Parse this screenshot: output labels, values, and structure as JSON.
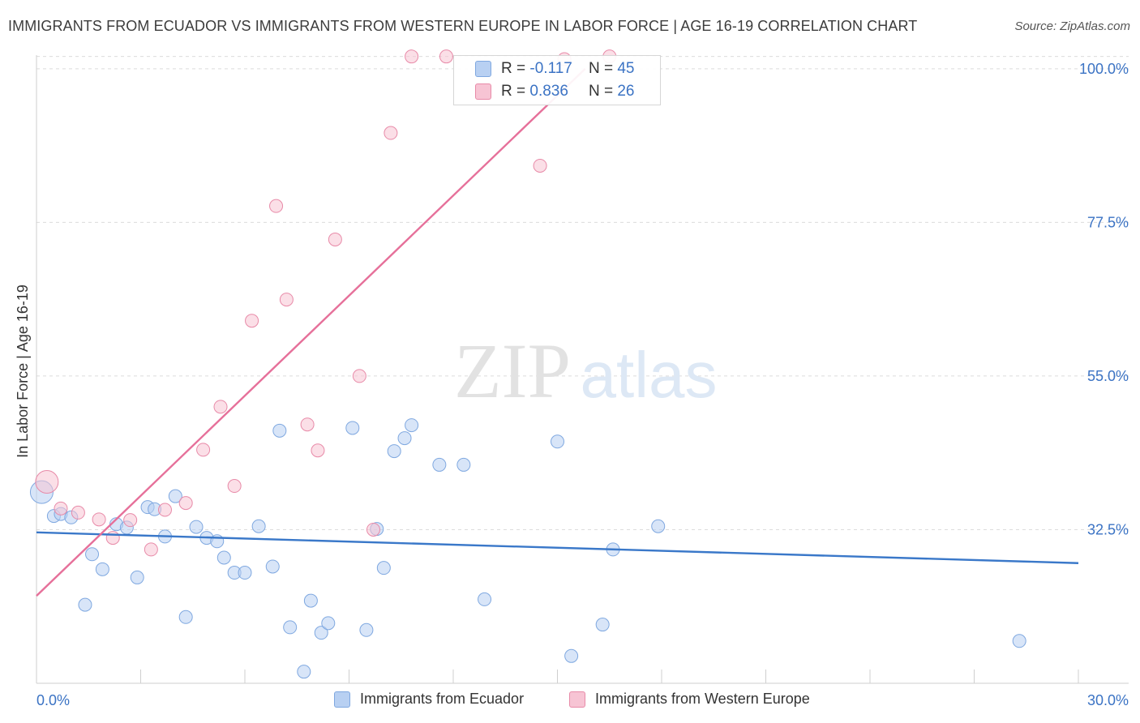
{
  "header": {
    "title": "IMMIGRANTS FROM ECUADOR VS IMMIGRANTS FROM WESTERN EUROPE IN LABOR FORCE | AGE 16-19 CORRELATION CHART",
    "source": "Source: ZipAtlas.com"
  },
  "watermark": {
    "zip": "ZIP",
    "atlas": "atlas"
  },
  "legend": {
    "r_label": "R =",
    "n_label": "N =",
    "series": [
      {
        "name": "Immigrants from Ecuador",
        "r": "-0.117",
        "n": "45",
        "color": "#7fa8e0",
        "fill": "#b8d0f2"
      },
      {
        "name": "Immigrants from Western Europe",
        "r": "0.836",
        "n": "26",
        "color": "#e88aa8",
        "fill": "#f7c4d4"
      }
    ]
  },
  "chart_data": {
    "type": "scatter",
    "title": "IMMIGRANTS FROM ECUADOR VS IMMIGRANTS FROM WESTERN EUROPE IN LABOR FORCE | AGE 16-19 CORRELATION CHART",
    "xlabel": "",
    "ylabel": "In Labor Force | Age 16-19",
    "xlim": [
      0,
      30
    ],
    "ylim": [
      10,
      102
    ],
    "x_tick_labels": [
      "0.0%",
      "30.0%"
    ],
    "y_ticks": [
      32.5,
      55.0,
      77.5,
      100.0
    ],
    "y_tick_labels": [
      "32.5%",
      "55.0%",
      "77.5%",
      "100.0%"
    ],
    "grid": true,
    "series": [
      {
        "name": "Immigrants from Ecuador",
        "color": "#3a78c9",
        "trend": {
          "x": [
            0,
            30
          ],
          "y": [
            32.1,
            27.6
          ]
        },
        "points": [
          {
            "x": 0.15,
            "y": 38.0,
            "big": true
          },
          {
            "x": 0.5,
            "y": 34.5
          },
          {
            "x": 0.7,
            "y": 34.8
          },
          {
            "x": 1.0,
            "y": 34.3
          },
          {
            "x": 1.6,
            "y": 28.9
          },
          {
            "x": 1.4,
            "y": 21.5
          },
          {
            "x": 1.9,
            "y": 26.7
          },
          {
            "x": 2.3,
            "y": 33.3
          },
          {
            "x": 2.6,
            "y": 32.8
          },
          {
            "x": 2.9,
            "y": 25.5
          },
          {
            "x": 3.2,
            "y": 35.8
          },
          {
            "x": 3.4,
            "y": 35.5
          },
          {
            "x": 3.7,
            "y": 31.5
          },
          {
            "x": 4.0,
            "y": 37.4
          },
          {
            "x": 4.3,
            "y": 19.7
          },
          {
            "x": 4.6,
            "y": 32.9
          },
          {
            "x": 4.9,
            "y": 31.3
          },
          {
            "x": 5.2,
            "y": 30.8
          },
          {
            "x": 5.4,
            "y": 28.4
          },
          {
            "x": 5.7,
            "y": 26.2
          },
          {
            "x": 6.0,
            "y": 26.2
          },
          {
            "x": 6.4,
            "y": 33.0
          },
          {
            "x": 6.8,
            "y": 27.1
          },
          {
            "x": 7.0,
            "y": 47.0
          },
          {
            "x": 7.3,
            "y": 18.2
          },
          {
            "x": 7.7,
            "y": 11.7
          },
          {
            "x": 7.9,
            "y": 22.1
          },
          {
            "x": 8.2,
            "y": 17.4
          },
          {
            "x": 8.4,
            "y": 18.8
          },
          {
            "x": 9.1,
            "y": 47.4
          },
          {
            "x": 9.5,
            "y": 17.8
          },
          {
            "x": 9.8,
            "y": 32.6
          },
          {
            "x": 10.0,
            "y": 26.9
          },
          {
            "x": 10.3,
            "y": 44.0
          },
          {
            "x": 10.6,
            "y": 45.9
          },
          {
            "x": 10.8,
            "y": 47.8
          },
          {
            "x": 11.6,
            "y": 42.0
          },
          {
            "x": 12.3,
            "y": 42.0
          },
          {
            "x": 12.9,
            "y": 22.3
          },
          {
            "x": 15.0,
            "y": 45.4
          },
          {
            "x": 15.4,
            "y": 14.0
          },
          {
            "x": 16.3,
            "y": 18.6
          },
          {
            "x": 16.6,
            "y": 29.6
          },
          {
            "x": 17.9,
            "y": 33.0
          },
          {
            "x": 28.3,
            "y": 16.2
          }
        ]
      },
      {
        "name": "Immigrants from Western Europe",
        "color": "#e6709a",
        "trend": {
          "x": [
            0,
            15.8
          ],
          "y": [
            22.8,
            100.0
          ]
        },
        "points": [
          {
            "x": 0.3,
            "y": 39.5,
            "big": true
          },
          {
            "x": 0.7,
            "y": 35.6
          },
          {
            "x": 1.2,
            "y": 35.0
          },
          {
            "x": 1.8,
            "y": 34.0
          },
          {
            "x": 2.2,
            "y": 31.3
          },
          {
            "x": 2.7,
            "y": 33.9
          },
          {
            "x": 3.3,
            "y": 29.6
          },
          {
            "x": 3.7,
            "y": 35.4
          },
          {
            "x": 4.3,
            "y": 36.4
          },
          {
            "x": 4.8,
            "y": 44.2
          },
          {
            "x": 5.3,
            "y": 50.5
          },
          {
            "x": 5.7,
            "y": 38.9
          },
          {
            "x": 6.2,
            "y": 63.1
          },
          {
            "x": 6.9,
            "y": 79.9
          },
          {
            "x": 7.2,
            "y": 66.2
          },
          {
            "x": 7.8,
            "y": 47.9
          },
          {
            "x": 8.1,
            "y": 44.1
          },
          {
            "x": 8.6,
            "y": 75.0
          },
          {
            "x": 9.3,
            "y": 55.0
          },
          {
            "x": 9.7,
            "y": 32.5
          },
          {
            "x": 10.2,
            "y": 90.6
          },
          {
            "x": 10.8,
            "y": 101.8
          },
          {
            "x": 11.8,
            "y": 101.8
          },
          {
            "x": 14.5,
            "y": 85.8
          },
          {
            "x": 15.2,
            "y": 101.4
          },
          {
            "x": 16.5,
            "y": 101.8
          }
        ]
      }
    ]
  }
}
